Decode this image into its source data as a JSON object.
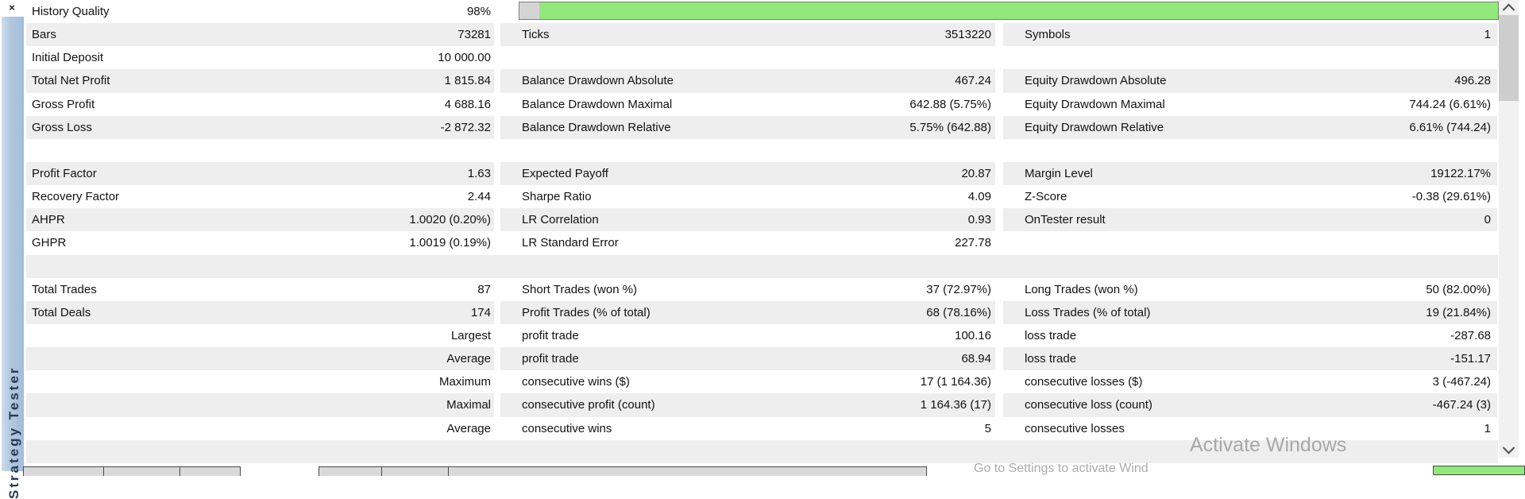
{
  "panel": {
    "title": "Strategy Tester",
    "close_label": "×"
  },
  "progress": {
    "label": "History Quality",
    "value": "98%",
    "percent": 98
  },
  "colors": {
    "progress_green": "#92e87b",
    "row_stripe": "#eeeeee",
    "side_strip_blue": "#aec7e0"
  },
  "rows": [
    {
      "c1l": "History Quality",
      "c1v": "98%",
      "bar": true
    },
    {
      "c1l": "Bars",
      "c1v": "73281",
      "c2l": "Ticks",
      "c2v": "3513220",
      "c3l": "Symbols",
      "c3v": "1"
    },
    {
      "c1l": "Initial Deposit",
      "c1v": "10 000.00"
    },
    {
      "c1l": "Total Net Profit",
      "c1v": "1 815.84",
      "c2l": "Balance Drawdown Absolute",
      "c2v": "467.24",
      "c3l": "Equity Drawdown Absolute",
      "c3v": "496.28"
    },
    {
      "c1l": "Gross Profit",
      "c1v": "4 688.16",
      "c2l": "Balance Drawdown Maximal",
      "c2v": "642.88 (5.75%)",
      "c3l": "Equity Drawdown Maximal",
      "c3v": "744.24 (6.61%)"
    },
    {
      "c1l": "Gross Loss",
      "c1v": "-2 872.32",
      "c2l": "Balance Drawdown Relative",
      "c2v": "5.75% (642.88)",
      "c3l": "Equity Drawdown Relative",
      "c3v": "6.61% (744.24)"
    },
    {
      "blank": true
    },
    {
      "c1l": "Profit Factor",
      "c1v": "1.63",
      "c2l": "Expected Payoff",
      "c2v": "20.87",
      "c3l": "Margin Level",
      "c3v": "19122.17%"
    },
    {
      "c1l": "Recovery Factor",
      "c1v": "2.44",
      "c2l": "Sharpe Ratio",
      "c2v": "4.09",
      "c3l": "Z-Score",
      "c3v": "-0.38 (29.61%)"
    },
    {
      "c1l": "AHPR",
      "c1v": "1.0020 (0.20%)",
      "c2l": "LR Correlation",
      "c2v": "0.93",
      "c3l": "OnTester result",
      "c3v": "0"
    },
    {
      "c1l": "GHPR",
      "c1v": "1.0019 (0.19%)",
      "c2l": "LR Standard Error",
      "c2v": "227.78"
    },
    {
      "blank": true
    },
    {
      "c1l": "Total Trades",
      "c1v": "87",
      "c2l": "Short Trades (won %)",
      "c2v": "37 (72.97%)",
      "c3l": "Long Trades (won %)",
      "c3v": "50 (82.00%)"
    },
    {
      "c1l": "Total Deals",
      "c1v": "174",
      "c2l": "Profit Trades (% of total)",
      "c2v": "68 (78.16%)",
      "c3l": "Loss Trades (% of total)",
      "c3v": "19 (21.84%)"
    },
    {
      "c1l": "",
      "c1v": "Largest",
      "c2l": "profit trade",
      "c2v": "100.16",
      "c3l": "loss trade",
      "c3v": "-287.68"
    },
    {
      "c1l": "",
      "c1v": "Average",
      "c2l": "profit trade",
      "c2v": "68.94",
      "c3l": "loss trade",
      "c3v": "-151.17"
    },
    {
      "c1l": "",
      "c1v": "Maximum",
      "c2l": "consecutive wins ($)",
      "c2v": "17 (1 164.36)",
      "c3l": "consecutive losses ($)",
      "c3v": "3 (-467.24)"
    },
    {
      "c1l": "",
      "c1v": "Maximal",
      "c2l": "consecutive profit (count)",
      "c2v": "1 164.36 (17)",
      "c3l": "consecutive loss (count)",
      "c3v": "-467.24 (3)"
    },
    {
      "c1l": "",
      "c1v": "Average",
      "c2l": "consecutive wins",
      "c2v": "5",
      "c3l": "consecutive losses",
      "c3v": "1"
    },
    {
      "blank": true
    }
  ],
  "watermark": {
    "line1": "Activate Windows",
    "line2": "Go to Settings to activate Wind"
  }
}
